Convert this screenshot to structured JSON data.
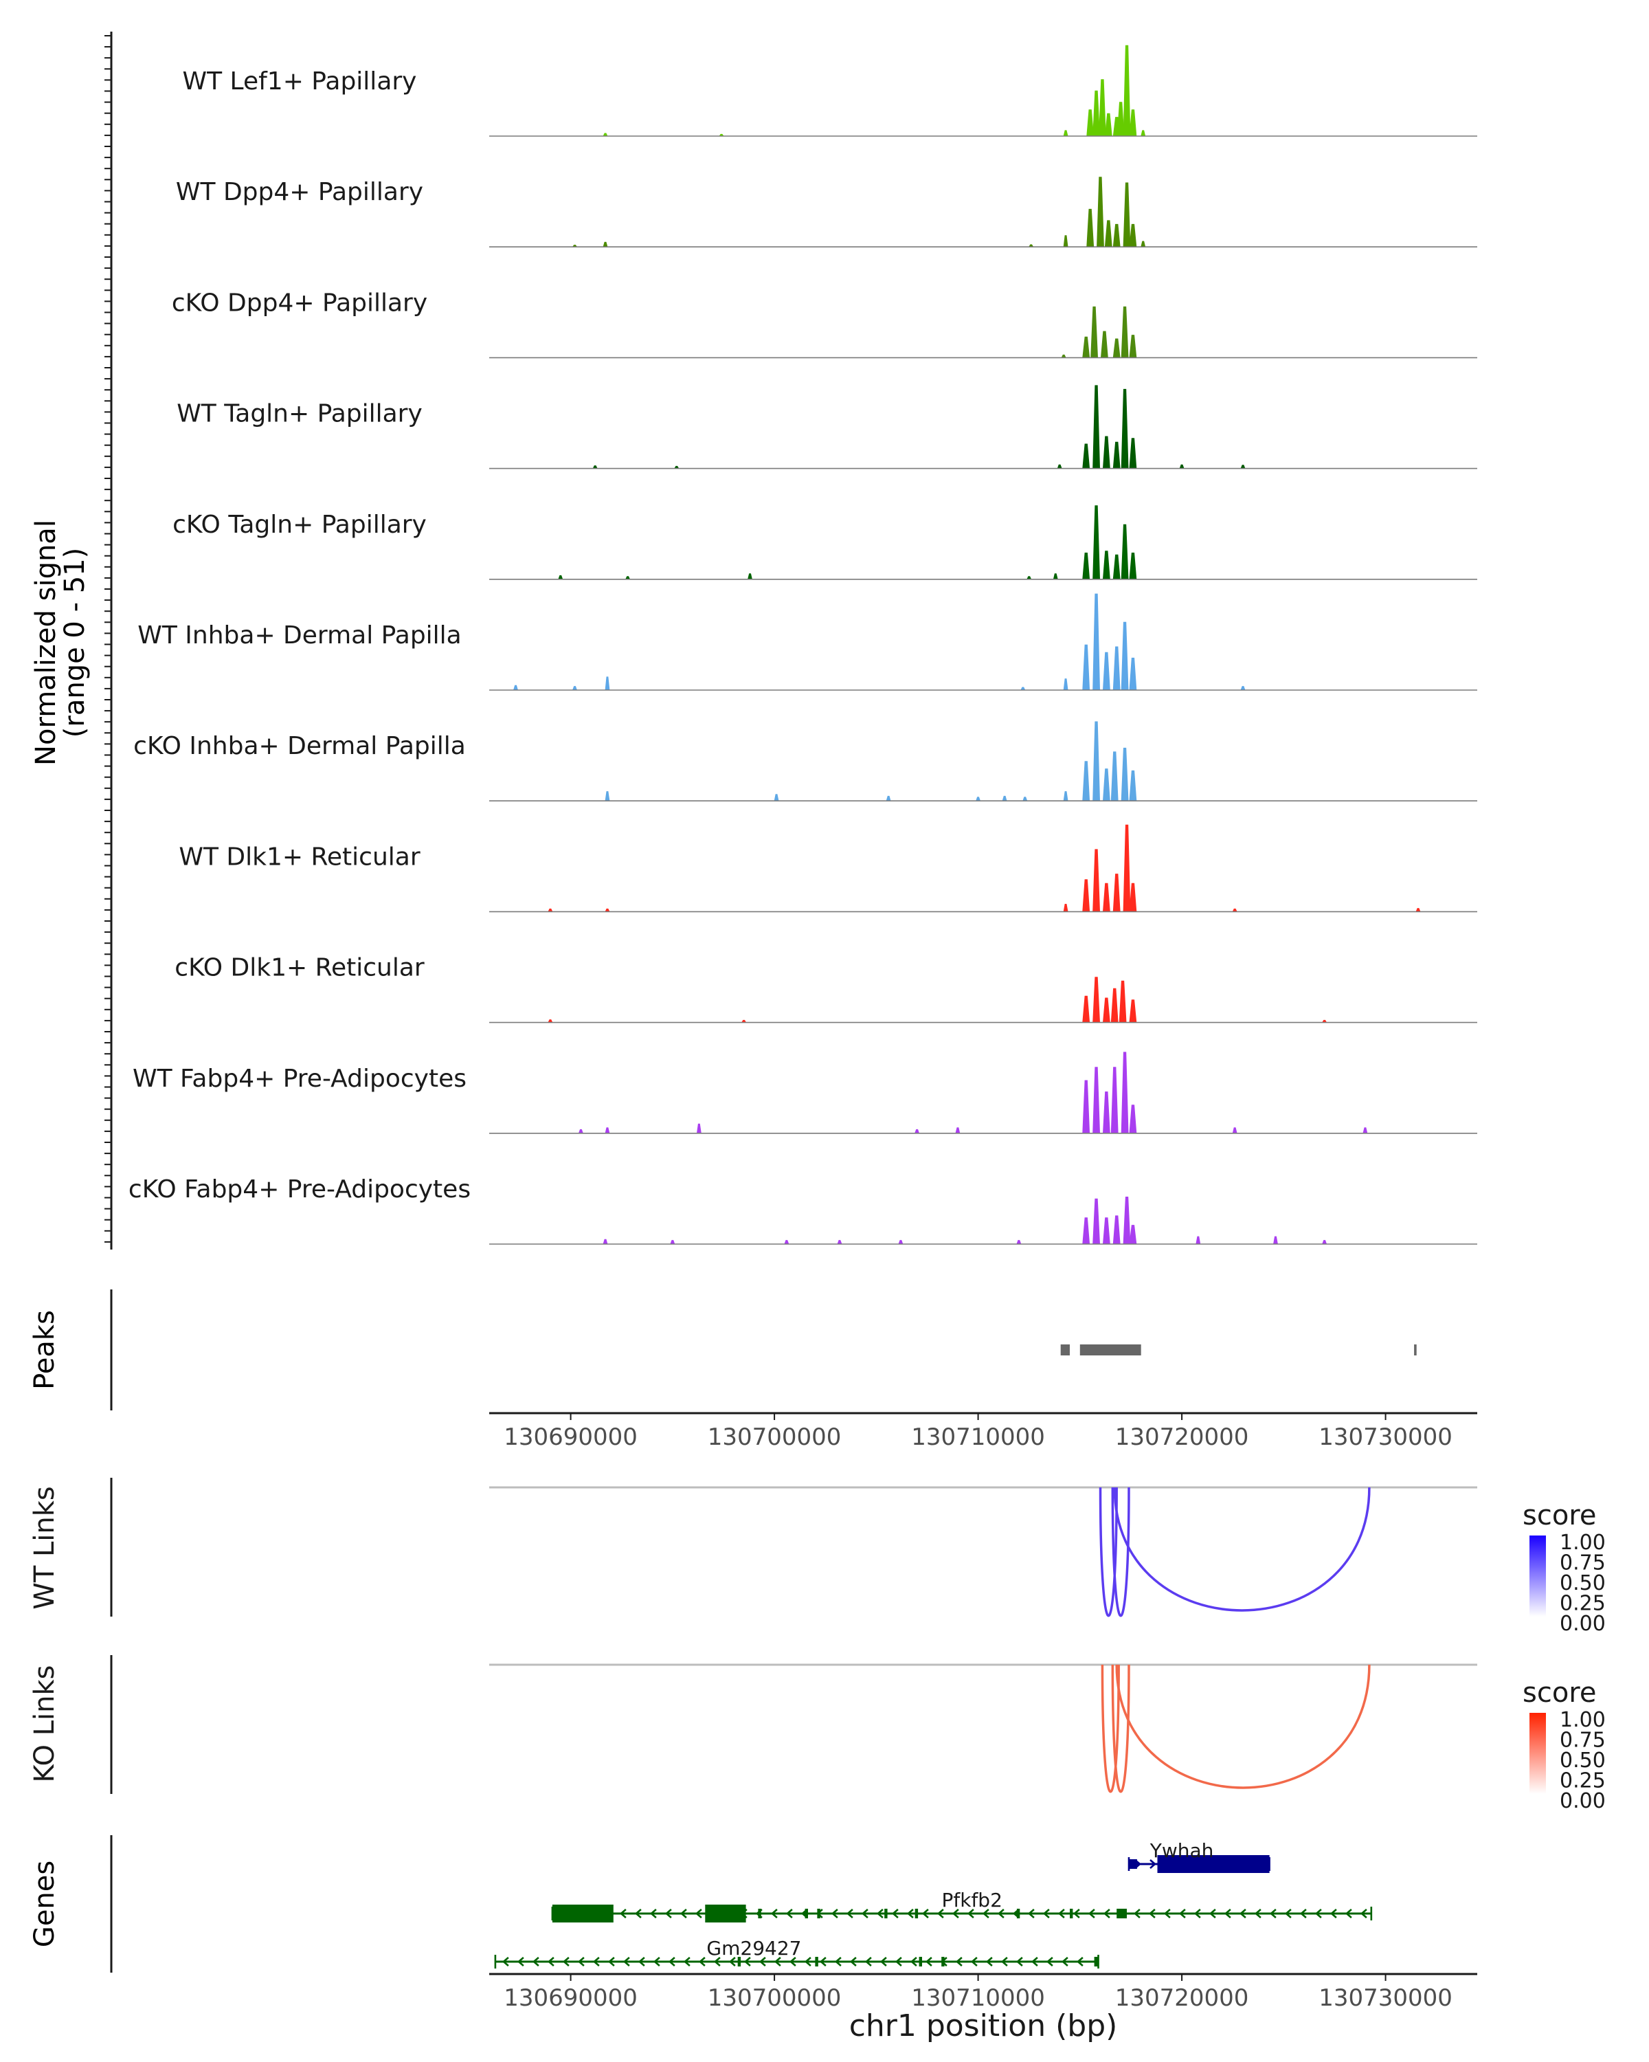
{
  "chart_data": {
    "type": "area",
    "region": "chr1",
    "x_range": [
      130686000,
      130734500
    ],
    "xlabel": "chr1 position (bp)",
    "x_ticks": [
      130690000,
      130700000,
      130710000,
      130720000,
      130730000
    ],
    "x_tick_labels": [
      "130690000",
      "130700000",
      "130710000",
      "130720000",
      "130730000"
    ],
    "signal_axis_label": "Normalized signal",
    "signal_range_label": "(range 0 - 51)",
    "ylim": [
      0,
      51
    ],
    "tracks": [
      {
        "name": "WT Lef1+ Papillary",
        "color": "#66CC00",
        "peaks": [
          [
            130714300,
            3
          ],
          [
            130715500,
            14
          ],
          [
            130715800,
            24
          ],
          [
            130716100,
            30
          ],
          [
            130716400,
            12
          ],
          [
            130716800,
            10
          ],
          [
            130717000,
            18
          ],
          [
            130717300,
            48
          ],
          [
            130717600,
            14
          ],
          [
            130718100,
            3
          ],
          [
            130691700,
            1.5
          ],
          [
            130697400,
            1
          ]
        ]
      },
      {
        "name": "WT Dpp4+ Papillary",
        "color": "#4D8B00",
        "peaks": [
          [
            130714300,
            6
          ],
          [
            130715500,
            20
          ],
          [
            130716000,
            37
          ],
          [
            130716400,
            14
          ],
          [
            130716800,
            12
          ],
          [
            130717300,
            34
          ],
          [
            130717600,
            12
          ],
          [
            130718100,
            3
          ],
          [
            130691700,
            2.5
          ],
          [
            130690200,
            1
          ],
          [
            130712600,
            1.2
          ]
        ]
      },
      {
        "name": "cKO Dpp4+ Papillary",
        "color": "#4E8A0E",
        "peaks": [
          [
            130715300,
            11
          ],
          [
            130715700,
            27
          ],
          [
            130716200,
            14
          ],
          [
            130716800,
            10
          ],
          [
            130717200,
            27
          ],
          [
            130717600,
            12
          ],
          [
            130714200,
            1.5
          ]
        ]
      },
      {
        "name": "WT Tagln+ Papillary",
        "color": "#005A00",
        "peaks": [
          [
            130715300,
            13
          ],
          [
            130715800,
            44
          ],
          [
            130716300,
            17
          ],
          [
            130716800,
            14
          ],
          [
            130717200,
            42
          ],
          [
            130717600,
            16
          ],
          [
            130714000,
            2
          ],
          [
            130691200,
            1.5
          ],
          [
            130695200,
            1.2
          ],
          [
            130720000,
            2
          ],
          [
            130723000,
            1.8
          ]
        ]
      },
      {
        "name": "cKO Tagln+ Papillary",
        "color": "#006400",
        "peaks": [
          [
            130715300,
            14
          ],
          [
            130715800,
            39
          ],
          [
            130716300,
            15
          ],
          [
            130716800,
            13
          ],
          [
            130717200,
            29
          ],
          [
            130717600,
            14
          ],
          [
            130713800,
            3
          ],
          [
            130689500,
            2
          ],
          [
            130692800,
            1.5
          ],
          [
            130698800,
            3
          ],
          [
            130712500,
            1.5
          ]
        ]
      },
      {
        "name": "WT Inhba+ Dermal Papilla",
        "color": "#5DA7E8",
        "peaks": [
          [
            130714300,
            6
          ],
          [
            130715300,
            24
          ],
          [
            130715800,
            51
          ],
          [
            130716300,
            20
          ],
          [
            130716800,
            23
          ],
          [
            130717200,
            36
          ],
          [
            130717600,
            17
          ],
          [
            130691800,
            7
          ],
          [
            130687300,
            2.5
          ],
          [
            130690200,
            2
          ],
          [
            130712200,
            1.5
          ],
          [
            130723000,
            2
          ]
        ]
      },
      {
        "name": "cKO Inhba+ Dermal Papilla",
        "color": "#5EA8E5",
        "peaks": [
          [
            130714300,
            5
          ],
          [
            130715300,
            21
          ],
          [
            130715800,
            42
          ],
          [
            130716300,
            17
          ],
          [
            130716700,
            26
          ],
          [
            130717200,
            28
          ],
          [
            130717600,
            16
          ],
          [
            130691800,
            5
          ],
          [
            130700100,
            3.5
          ],
          [
            130705600,
            2.5
          ],
          [
            130710000,
            2
          ],
          [
            130711300,
            2.5
          ],
          [
            130712300,
            2
          ]
        ]
      },
      {
        "name": "WT Dlk1+ Reticular",
        "color": "#FF2A1E",
        "peaks": [
          [
            130714300,
            4
          ],
          [
            130715300,
            17
          ],
          [
            130715800,
            33
          ],
          [
            130716300,
            15
          ],
          [
            130716800,
            20
          ],
          [
            130717300,
            46
          ],
          [
            130717600,
            15
          ],
          [
            130689000,
            1.5
          ],
          [
            130691800,
            1.5
          ],
          [
            130722600,
            1.5
          ],
          [
            130731600,
            1.8
          ]
        ]
      },
      {
        "name": "cKO Dlk1+ Reticular",
        "color": "#FF2A1E",
        "peaks": [
          [
            130715300,
            14
          ],
          [
            130715800,
            24
          ],
          [
            130716300,
            13
          ],
          [
            130716700,
            18
          ],
          [
            130717100,
            22
          ],
          [
            130717600,
            12
          ],
          [
            130689000,
            1.5
          ],
          [
            130698500,
            1.2
          ],
          [
            130727000,
            1.2
          ]
        ]
      },
      {
        "name": "WT Fabp4+ Pre-Adipocytes",
        "color": "#A93EF0",
        "peaks": [
          [
            130715300,
            28
          ],
          [
            130715800,
            35
          ],
          [
            130716300,
            22
          ],
          [
            130716700,
            35
          ],
          [
            130717200,
            43
          ],
          [
            130717600,
            15
          ],
          [
            130690500,
            2
          ],
          [
            130691800,
            3
          ],
          [
            130696300,
            5
          ],
          [
            130707000,
            2
          ],
          [
            130709000,
            3
          ],
          [
            130722600,
            3
          ],
          [
            130729000,
            3
          ]
        ]
      },
      {
        "name": "cKO Fabp4+ Pre-Adipocytes",
        "color": "#A93EF0",
        "peaks": [
          [
            130715300,
            14
          ],
          [
            130715800,
            24
          ],
          [
            130716300,
            14
          ],
          [
            130716800,
            15
          ],
          [
            130717300,
            25
          ],
          [
            130717600,
            10
          ],
          [
            130691700,
            2.5
          ],
          [
            130695000,
            2
          ],
          [
            130700600,
            2
          ],
          [
            130703200,
            2
          ],
          [
            130706200,
            2
          ],
          [
            130712000,
            2
          ],
          [
            130720800,
            4
          ],
          [
            130724600,
            4
          ],
          [
            130727000,
            2
          ]
        ]
      }
    ],
    "peaks_track": {
      "label": "Peaks",
      "color": "#666666",
      "regions": [
        [
          130714050,
          130714500
        ],
        [
          130715000,
          130718000
        ],
        [
          130731400,
          130731520
        ]
      ]
    },
    "links_tracks": [
      {
        "label": "WT Links",
        "legend_title": "score",
        "legend_ticks": [
          "1.00",
          "0.75",
          "0.50",
          "0.25",
          "0.00"
        ],
        "color_high": "#1A00FF",
        "arcs": [
          [
            130716000,
            130716800,
            0.75,
            96
          ],
          [
            130716600,
            130717400,
            0.75,
            96
          ],
          [
            130716700,
            130729200,
            0.75,
            92
          ]
        ]
      },
      {
        "label": "KO Links",
        "legend_title": "score",
        "legend_ticks": [
          "1.00",
          "0.75",
          "0.50",
          "0.25",
          "0.00"
        ],
        "color_high": "#FF2200",
        "arcs": [
          [
            130716100,
            130716900,
            0.75,
            95
          ],
          [
            130716600,
            130717400,
            0.75,
            95
          ],
          [
            130716800,
            130729200,
            0.75,
            92
          ]
        ]
      }
    ],
    "genes_track": {
      "label": "Genes",
      "genes": [
        {
          "name": "Ywhah",
          "start": 130717400,
          "end": 130724300,
          "strand": "+",
          "color": "#00008B",
          "row": 0,
          "exons": [
            [
              130717400,
              130717800
            ],
            [
              130718800,
              130724300
            ]
          ]
        },
        {
          "name": "Pfkfb2",
          "start": 130689100,
          "end": 130729300,
          "strand": "-",
          "color": "#006400",
          "row": 1,
          "exons": [
            [
              130689100,
              130692100
            ],
            [
              130696600,
              130698600
            ],
            [
              130699200,
              130699350
            ],
            [
              130701500,
              130701650
            ],
            [
              130702100,
              130702250
            ],
            [
              130705400,
              130705550
            ],
            [
              130706900,
              130707050
            ],
            [
              130711900,
              130712050
            ],
            [
              130714500,
              130714650
            ],
            [
              130716800,
              130717300
            ]
          ]
        },
        {
          "name": "Gm29427",
          "start": 130686300,
          "end": 130715900,
          "strand": "-",
          "color": "#006400",
          "row": 2,
          "exons": [
            [
              130698200,
              130698350
            ],
            [
              130702000,
              130702150
            ],
            [
              130707100,
              130707250
            ],
            [
              130708200,
              130708350
            ],
            [
              130715700,
              130715900
            ]
          ]
        }
      ]
    }
  }
}
